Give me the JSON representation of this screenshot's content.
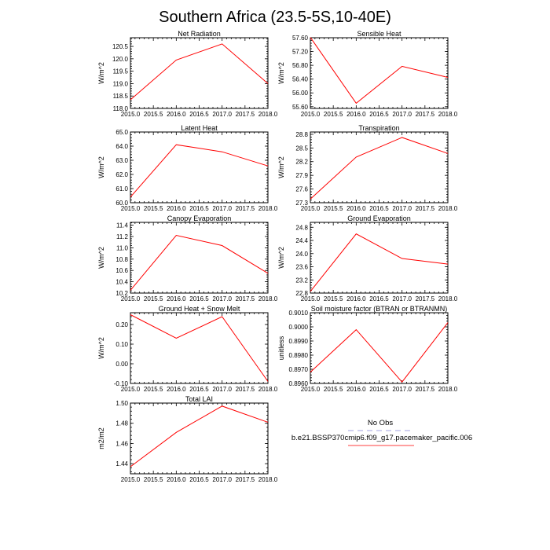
{
  "figure_title": "Southern Africa (23.5-5S,10-40E)",
  "legend": {
    "entries": [
      {
        "label": "No Obs",
        "color": "#b3b3e6",
        "dash": true
      },
      {
        "label": "b.e21.BSSP370cmip6.f09_g17.pacemaker_pacific.006",
        "color": "#ff6666",
        "dash": false
      }
    ]
  },
  "chart_data": [
    {
      "type": "line",
      "title": "Net Radiation",
      "ylabel": "W/m^2",
      "x": [
        2015,
        2016,
        2017,
        2018
      ],
      "values": [
        118.35,
        119.95,
        120.6,
        119.0
      ],
      "xlim": [
        2015,
        2018
      ],
      "ylim": [
        118.0,
        120.85
      ],
      "xticks": [
        "2015.0",
        "2015.5",
        "2016.0",
        "2016.5",
        "2017.0",
        "2017.5",
        "2018.0"
      ],
      "yticks": [
        "118.0",
        "118.5",
        "119.0",
        "119.5",
        "120.0",
        "120.5"
      ]
    },
    {
      "type": "line",
      "title": "Sensible Heat",
      "ylabel": "W/m^2",
      "x": [
        2015,
        2016,
        2017,
        2018
      ],
      "values": [
        57.61,
        55.7,
        56.77,
        56.45
      ],
      "xlim": [
        2015,
        2018
      ],
      "ylim": [
        55.55,
        57.6
      ],
      "xticks": [
        "2015.0",
        "2015.5",
        "2016.0",
        "2016.5",
        "2017.0",
        "2017.5",
        "2018.0"
      ],
      "yticks": [
        "55.60",
        "56.00",
        "56.40",
        "56.80",
        "57.20",
        "57.60"
      ]
    },
    {
      "type": "line",
      "title": "Latent Heat",
      "ylabel": "W/m^2",
      "x": [
        2015,
        2016,
        2017,
        2018
      ],
      "values": [
        60.4,
        64.1,
        63.6,
        62.6
      ],
      "xlim": [
        2015,
        2018
      ],
      "ylim": [
        60.0,
        65.0
      ],
      "xticks": [
        "2015.0",
        "2015.5",
        "2016.0",
        "2016.5",
        "2017.0",
        "2017.5",
        "2018.0"
      ],
      "yticks": [
        "60.0",
        "61.0",
        "62.0",
        "63.0",
        "64.0",
        "65.0"
      ]
    },
    {
      "type": "line",
      "title": "Transpiration",
      "ylabel": "W/m^2",
      "x": [
        2015,
        2016,
        2017,
        2018
      ],
      "values": [
        27.38,
        28.3,
        28.73,
        28.38
      ],
      "xlim": [
        2015,
        2018
      ],
      "ylim": [
        27.3,
        28.85
      ],
      "xticks": [
        "2015.0",
        "2015.5",
        "2016.0",
        "2016.5",
        "2017.0",
        "2017.5",
        "2018.0"
      ],
      "yticks": [
        "27.3",
        "27.6",
        "27.9",
        "28.2",
        "28.5",
        "28.8"
      ]
    },
    {
      "type": "line",
      "title": "Canopy Evaporation",
      "ylabel": "W/m^2",
      "x": [
        2015,
        2016,
        2017,
        2018
      ],
      "values": [
        10.25,
        11.22,
        11.04,
        10.55
      ],
      "xlim": [
        2015,
        2018
      ],
      "ylim": [
        10.2,
        11.45
      ],
      "xticks": [
        "2015.0",
        "2015.5",
        "2016.0",
        "2016.5",
        "2017.0",
        "2017.5",
        "2018.0"
      ],
      "yticks": [
        "10.2",
        "10.4",
        "10.6",
        "10.8",
        "11.0",
        "11.2",
        "11.4"
      ]
    },
    {
      "type": "line",
      "title": "Ground Evaporation",
      "ylabel": "W/m^2",
      "x": [
        2015,
        2016,
        2017,
        2018
      ],
      "values": [
        22.85,
        24.6,
        23.85,
        23.68
      ],
      "xlim": [
        2015,
        2018
      ],
      "ylim": [
        22.8,
        24.95
      ],
      "xticks": [
        "2015.0",
        "2015.5",
        "2016.0",
        "2016.5",
        "2017.0",
        "2017.5",
        "2018.0"
      ],
      "yticks": [
        "22.8",
        "23.2",
        "23.6",
        "24.0",
        "24.4",
        "24.8"
      ]
    },
    {
      "type": "line",
      "title": "Ground Heat + Snow Melt",
      "ylabel": "W/m^2",
      "x": [
        2015,
        2016,
        2017,
        2018
      ],
      "values": [
        0.25,
        0.13,
        0.24,
        -0.09
      ],
      "xlim": [
        2015,
        2018
      ],
      "ylim": [
        -0.1,
        0.26
      ],
      "xticks": [
        "2015.0",
        "2015.5",
        "2016.0",
        "2016.5",
        "2017.0",
        "2017.5",
        "2018.0"
      ],
      "yticks": [
        "-0.10",
        "0.00",
        "0.10",
        "0.20"
      ]
    },
    {
      "type": "line",
      "title": "Soil moisture factor (BTRAN or BTRANMN)",
      "ylabel": "unitless",
      "x": [
        2015,
        2016,
        2017,
        2018
      ],
      "values": [
        0.8968,
        0.8998,
        0.8961,
        0.9003
      ],
      "xlim": [
        2015,
        2018
      ],
      "ylim": [
        0.896,
        0.901
      ],
      "xticks": [
        "2015.0",
        "2015.5",
        "2016.0",
        "2016.5",
        "2017.0",
        "2017.5",
        "2018.0"
      ],
      "yticks": [
        "0.8960",
        "0.8970",
        "0.8980",
        "0.8990",
        "0.9000",
        "0.9010"
      ]
    },
    {
      "type": "line",
      "title": "Total LAI",
      "ylabel": "m2/m2",
      "x": [
        2015,
        2016,
        2017,
        2018
      ],
      "values": [
        1.437,
        1.471,
        1.497,
        1.481
      ],
      "xlim": [
        2015,
        2018
      ],
      "ylim": [
        1.43,
        1.5
      ],
      "xticks": [
        "2015.0",
        "2015.5",
        "2016.0",
        "2016.5",
        "2017.0",
        "2017.5",
        "2018.0"
      ],
      "yticks": [
        "1.44",
        "1.46",
        "1.48",
        "1.50"
      ]
    }
  ]
}
